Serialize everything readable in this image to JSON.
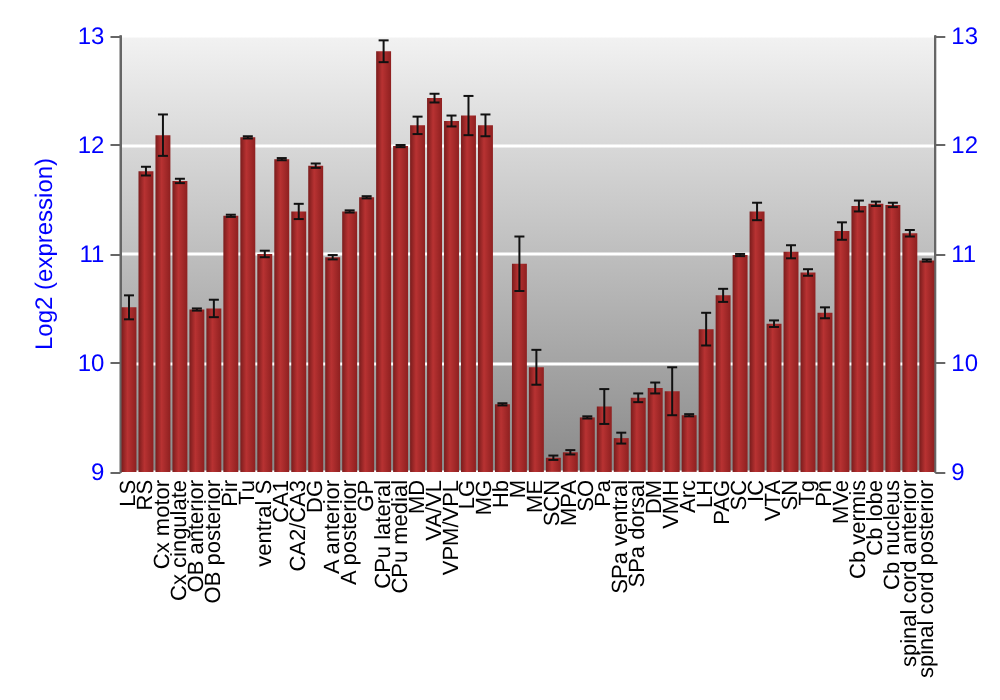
{
  "chart_data": {
    "type": "bar",
    "ylabel": "Log2 (expression)",
    "categories": [
      "LS",
      "RS",
      "Cx motor",
      "Cx cingulate",
      "OB anterior",
      "OB posterior",
      "Pir",
      "Tu",
      "ventral S",
      "CA1",
      "CA2/CA3",
      "DG",
      "A anterior",
      "A posterior",
      "GP",
      "CPu lateral",
      "CPu medial",
      "MD",
      "VA/VL",
      "VPM/VPL",
      "LG",
      "MG",
      "Hb",
      "M",
      "ME",
      "SCN",
      "MPA",
      "SO",
      "Pa",
      "SPa ventral",
      "SPa dorsal",
      "DM",
      "VMH",
      "Arc",
      "LH",
      "PAG",
      "SC",
      "IC",
      "VTA",
      "SN",
      "Tg",
      "Pn",
      "MVe",
      "Cb vermis",
      "Cb lobe",
      "Cb nucleus",
      "spinal cord anterior",
      "spinal cord posterior"
    ],
    "values": [
      10.51,
      11.76,
      12.09,
      11.67,
      10.49,
      10.5,
      11.35,
      12.07,
      11.0,
      11.87,
      11.39,
      11.81,
      10.97,
      11.39,
      11.52,
      12.86,
      11.99,
      12.18,
      12.43,
      12.22,
      12.27,
      12.18,
      9.62,
      10.91,
      9.96,
      9.13,
      9.18,
      9.5,
      9.6,
      9.31,
      9.68,
      9.77,
      9.74,
      9.52,
      10.31,
      10.62,
      10.99,
      11.39,
      10.36,
      11.02,
      10.83,
      10.46,
      11.21,
      11.44,
      11.46,
      11.45,
      11.19,
      10.94
    ],
    "errors": [
      0.11,
      0.04,
      0.19,
      0.02,
      0.01,
      0.08,
      0.01,
      0.01,
      0.03,
      0.01,
      0.07,
      0.02,
      0.02,
      0.01,
      0.01,
      0.1,
      0.01,
      0.08,
      0.04,
      0.05,
      0.18,
      0.1,
      0.01,
      0.25,
      0.16,
      0.02,
      0.02,
      0.01,
      0.16,
      0.05,
      0.04,
      0.05,
      0.22,
      0.01,
      0.15,
      0.06,
      0.01,
      0.08,
      0.03,
      0.06,
      0.03,
      0.05,
      0.08,
      0.05,
      0.02,
      0.02,
      0.03,
      0.01
    ],
    "color": "#b83232",
    "ylim": [
      9,
      13
    ],
    "yticks": [
      9,
      10,
      11,
      12,
      13
    ],
    "y2lim": [
      9,
      13
    ],
    "y2ticks": [
      9,
      10,
      11,
      12,
      13
    ],
    "grid": "y"
  }
}
